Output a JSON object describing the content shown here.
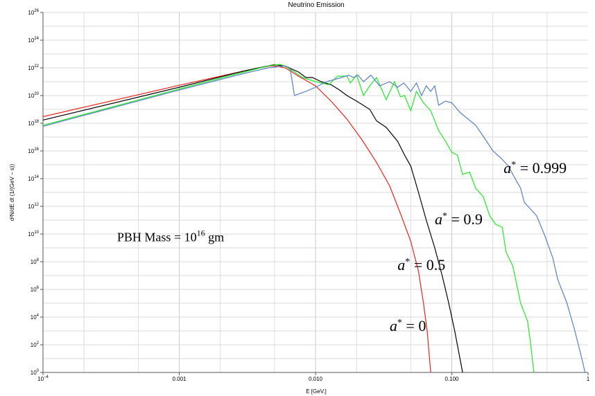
{
  "chart_data": {
    "type": "line",
    "title": "Neutrino Emission",
    "xlabel": "E [GeV.]",
    "ylabel": "d²N/dE dt (1/(GeV − s))",
    "x_scale": "log",
    "y_scale": "log",
    "xlim": [
      0.0001,
      1
    ],
    "ylim": [
      1,
      1e+26
    ],
    "grid": true,
    "x_ticks": [
      {
        "value": 0.0001,
        "label": "10",
        "sup": "−4"
      },
      {
        "value": 0.001,
        "label": "0.001",
        "sup": ""
      },
      {
        "value": 0.01,
        "label": "0.010",
        "sup": ""
      },
      {
        "value": 0.1,
        "label": "0.100",
        "sup": ""
      },
      {
        "value": 1,
        "label": "1",
        "sup": ""
      }
    ],
    "y_ticks": [
      {
        "value": 1,
        "label": "10",
        "sup": "0"
      },
      {
        "value": 100,
        "label": "10",
        "sup": "2"
      },
      {
        "value": 10000,
        "label": "10",
        "sup": "4"
      },
      {
        "value": 1000000.0,
        "label": "10",
        "sup": "6"
      },
      {
        "value": 100000000.0,
        "label": "10",
        "sup": "8"
      },
      {
        "value": 10000000000.0,
        "label": "10",
        "sup": "10"
      },
      {
        "value": 1000000000000.0,
        "label": "10",
        "sup": "12"
      },
      {
        "value": 100000000000000.0,
        "label": "10",
        "sup": "14"
      },
      {
        "value": 1e+16,
        "label": "10",
        "sup": "16"
      },
      {
        "value": 1e+18,
        "label": "10",
        "sup": "18"
      },
      {
        "value": 1e+20,
        "label": "10",
        "sup": "20"
      },
      {
        "value": 1e+22,
        "label": "10",
        "sup": "22"
      },
      {
        "value": 1e+24,
        "label": "10",
        "sup": "24"
      },
      {
        "value": 1e+26,
        "label": "10",
        "sup": "26"
      }
    ],
    "series": [
      {
        "label": "a* = 0",
        "color": "#e8241f",
        "points": [
          [
            0.0001,
            3e+18
          ],
          [
            0.001,
            5.5e+20
          ],
          [
            0.003,
            6e+21
          ],
          [
            0.0045,
            1.3e+22
          ],
          [
            0.005,
            1.4e+22
          ],
          [
            0.006,
            1e+22
          ],
          [
            0.0075,
            2.5e+21
          ],
          [
            0.01,
            5e+20
          ],
          [
            0.013,
            4e+19
          ],
          [
            0.017,
            2e+18
          ],
          [
            0.022,
            6e+16
          ],
          [
            0.028,
            1500000000000000.0
          ],
          [
            0.035,
            30000000000000.0
          ],
          [
            0.042,
            300000000000.0
          ],
          [
            0.05,
            3000000000.0
          ],
          [
            0.057,
            20000000.0
          ],
          [
            0.062,
            100000.0
          ],
          [
            0.066,
            1000.0
          ],
          [
            0.07,
            1
          ]
        ]
      },
      {
        "label": "a* = 0.5",
        "color": "#000000",
        "points": [
          [
            0.0001,
            1.7e+18
          ],
          [
            0.001,
            4e+20
          ],
          [
            0.003,
            6e+21
          ],
          [
            0.0045,
            1.4e+22
          ],
          [
            0.005,
            1.7e+22
          ],
          [
            0.006,
            1.3e+22
          ],
          [
            0.0075,
            5e+21
          ],
          [
            0.0085,
            2e+21
          ],
          [
            0.0095,
            2e+21
          ],
          [
            0.011,
            1e+21
          ],
          [
            0.013,
            6e+20
          ],
          [
            0.015,
            2.5e+20
          ],
          [
            0.017,
            1e+20
          ],
          [
            0.02,
            4e+19
          ],
          [
            0.025,
            1e+19
          ],
          [
            0.028,
            1.5e+18
          ],
          [
            0.033,
            5e+17
          ],
          [
            0.04,
            5e+16
          ],
          [
            0.045,
            5000000000000000.0
          ],
          [
            0.05,
            800000000000000.0
          ],
          [
            0.057,
            10000000000000.0
          ],
          [
            0.065,
            100000000000.0
          ],
          [
            0.075,
            1000000000.0
          ],
          [
            0.085,
            10000000.0
          ],
          [
            0.095,
            100000.0
          ],
          [
            0.105,
            1000.0
          ],
          [
            0.12,
            1
          ]
        ]
      },
      {
        "label": "a* = 0.9",
        "color": "#22e82a",
        "points": [
          [
            0.0001,
            7e+17
          ],
          [
            0.001,
            3e+20
          ],
          [
            0.003,
            5e+21
          ],
          [
            0.0045,
            1.4e+22
          ],
          [
            0.0055,
            1.8e+22
          ],
          [
            0.006,
            1.3e+22
          ],
          [
            0.007,
            5e+21
          ],
          [
            0.008,
            2e+21
          ],
          [
            0.01,
            1e+21
          ],
          [
            0.0125,
            6e+20
          ],
          [
            0.0145,
            2.5e+21
          ],
          [
            0.017,
            2.5e+21
          ],
          [
            0.018,
            8e+20
          ],
          [
            0.02,
            3e+21
          ],
          [
            0.0225,
            1e+20
          ],
          [
            0.025,
            5e+20
          ],
          [
            0.028,
            2e+21
          ],
          [
            0.033,
            5e+19
          ],
          [
            0.038,
            1e+21
          ],
          [
            0.042,
            8e+19
          ],
          [
            0.045,
            1e+20
          ],
          [
            0.05,
            8e+18
          ],
          [
            0.055,
            2e+20
          ],
          [
            0.062,
            3e+19
          ],
          [
            0.07,
            8e+18
          ],
          [
            0.08,
            3e+17
          ],
          [
            0.09,
            5e+16
          ],
          [
            0.1,
            8000000000000000.0
          ],
          [
            0.11,
            5000000000000000.0
          ],
          [
            0.12,
            200000000000000.0
          ],
          [
            0.135,
            300000000000000.0
          ],
          [
            0.15,
            20000000000000.0
          ],
          [
            0.17,
            5000000000000.0
          ],
          [
            0.19,
            200000000000.0
          ],
          [
            0.21,
            50000000000.0
          ],
          [
            0.235,
            30000000000.0
          ],
          [
            0.25,
            500000000.0
          ],
          [
            0.28,
            50000000.0
          ],
          [
            0.32,
            100000.0
          ],
          [
            0.36,
            5000.0
          ],
          [
            0.38,
            100.0
          ],
          [
            0.4,
            1
          ]
        ]
      },
      {
        "label": "a* = 0.999",
        "color": "#5b7fbf",
        "points": [
          [
            0.0001,
            6e+17
          ],
          [
            0.001,
            2.5e+20
          ],
          [
            0.003,
            4e+21
          ],
          [
            0.0045,
            1e+22
          ],
          [
            0.006,
            1.4e+22
          ],
          [
            0.0065,
            1e+22
          ],
          [
            0.007,
            1e+20
          ],
          [
            0.0085,
            2e+20
          ],
          [
            0.01,
            4e+20
          ],
          [
            0.012,
            1e+21
          ],
          [
            0.0155,
            2e+21
          ],
          [
            0.0175,
            3e+21
          ],
          [
            0.019,
            2e+21
          ],
          [
            0.0205,
            3e+21
          ],
          [
            0.0225,
            1e+21
          ],
          [
            0.0255,
            3e+21
          ],
          [
            0.0295,
            5e+20
          ],
          [
            0.035,
            1e+21
          ],
          [
            0.04,
            4e+20
          ],
          [
            0.0445,
            8e+20
          ],
          [
            0.05,
            2e+20
          ],
          [
            0.055,
            8e+20
          ],
          [
            0.06,
            1e+20
          ],
          [
            0.065,
            5e+20
          ],
          [
            0.07,
            2e+20
          ],
          [
            0.075,
            5e+20
          ],
          [
            0.08,
            2e+19
          ],
          [
            0.09,
            4e+19
          ],
          [
            0.1,
            3e+19
          ],
          [
            0.115,
            6e+18
          ],
          [
            0.15,
            7e+17
          ],
          [
            0.18,
            5e+16
          ],
          [
            0.2,
            1e+16
          ],
          [
            0.23,
            3000000000000000.0
          ],
          [
            0.26,
            800000000000000.0
          ],
          [
            0.3,
            60000000000000.0
          ],
          [
            0.32,
            20000000000000.0
          ],
          [
            0.34,
            2000000000000.0
          ],
          [
            0.38,
            600000000000.0
          ],
          [
            0.42,
            200000000000.0
          ],
          [
            0.48,
            8000000000.0
          ],
          [
            0.55,
            200000000.0
          ],
          [
            0.6,
            5000000.0
          ],
          [
            0.7,
            100000.0
          ],
          [
            0.8,
            1000.0
          ],
          [
            0.9,
            10.0
          ],
          [
            0.95,
            1
          ]
        ]
      }
    ],
    "annotations": [
      {
        "base": "a",
        "sup": "*",
        "rest": " = 0",
        "x": 0.035,
        "y": 1000.0
      },
      {
        "base": "a",
        "sup": "*",
        "rest": " = 0.5",
        "x": 0.04,
        "y": 25000000.0
      },
      {
        "base": "a",
        "sup": "*",
        "rest": " = 0.9",
        "x": 0.075,
        "y": 50000000000.0
      },
      {
        "base": "a",
        "sup": "*",
        "rest": " = 0.999",
        "x": 0.24,
        "y": 250000000000000.0
      },
      {
        "base": "PBH Mass = 10",
        "sup": "16",
        "rest": " gm",
        "x": 0.00035,
        "y": 3000000000.0
      }
    ]
  }
}
